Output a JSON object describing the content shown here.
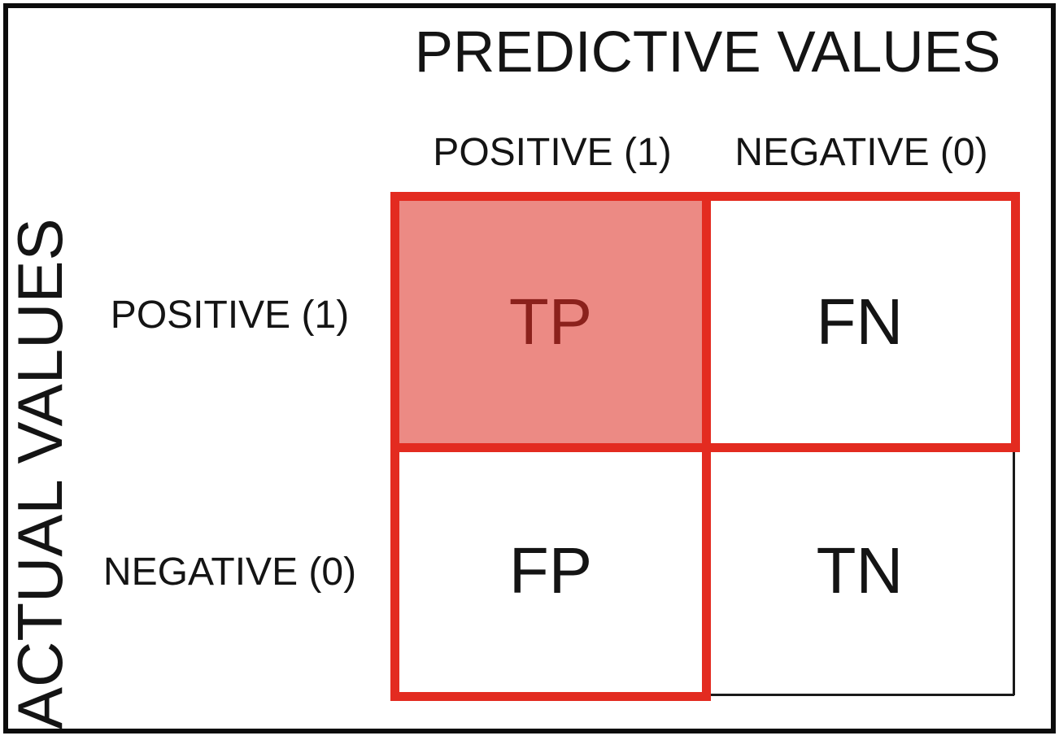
{
  "diagram": {
    "type": "confusion-matrix",
    "title": "PREDICTIVE VALUES",
    "y_axis_label": "ACTUAL VALUES",
    "columns": [
      {
        "label": "POSITIVE (1)"
      },
      {
        "label": "NEGATIVE (0)"
      }
    ],
    "rows": [
      {
        "label": "POSITIVE (1)"
      },
      {
        "label": "NEGATIVE (0)"
      }
    ],
    "cells": [
      {
        "id": "tp",
        "label": "TP",
        "row": "POSITIVE (1)",
        "column": "POSITIVE (1)",
        "highlighted": true
      },
      {
        "id": "fn",
        "label": "FN",
        "row": "POSITIVE (1)",
        "column": "NEGATIVE (0)",
        "highlighted": false
      },
      {
        "id": "fp",
        "label": "FP",
        "row": "NEGATIVE (0)",
        "column": "POSITIVE (1)",
        "highlighted": false
      },
      {
        "id": "tn",
        "label": "TN",
        "row": "NEGATIVE (0)",
        "column": "NEGATIVE (0)",
        "highlighted": false
      }
    ],
    "highlight_outlines": [
      "top-row",
      "left-column"
    ],
    "colors": {
      "highlight_fill": "#EC8A84",
      "highlight_outline": "#E32B20",
      "highlight_text": "#8B211C",
      "grid_line": "#1A1A1A",
      "text": "#141414",
      "background": "#FFFFFF",
      "outer_border": "#0C0C0C"
    }
  }
}
